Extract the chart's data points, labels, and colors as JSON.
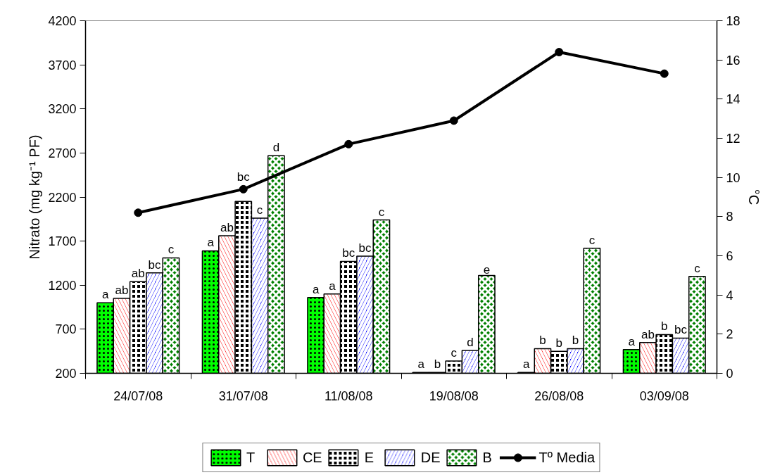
{
  "chart_data": {
    "type": "bar",
    "categories": [
      "24/07/08",
      "31/07/08",
      "11/08/08",
      "19/08/08",
      "26/08/08",
      "03/09/08"
    ],
    "ylabel": "Nitrato (mg kg⁻¹ PF)",
    "y2label": "°C",
    "ylim": [
      200,
      4200
    ],
    "yticks": [
      200,
      700,
      1200,
      1700,
      2200,
      2700,
      3200,
      3700,
      4200
    ],
    "y2lim": [
      0,
      18
    ],
    "y2ticks": [
      0,
      2,
      4,
      6,
      8,
      10,
      12,
      14,
      16,
      18
    ],
    "grid": false,
    "legend": "bottom",
    "marker": "circle",
    "series": [
      {
        "name": "T",
        "color": "#00ff00",
        "values": [
          1000,
          1590,
          1060,
          210,
          210,
          470
        ],
        "value_labels": [
          "a",
          "a",
          "a",
          "a",
          "a",
          "a"
        ]
      },
      {
        "name": "CE",
        "color": "#ff0000",
        "values": [
          1050,
          1760,
          1100,
          210,
          480,
          550
        ],
        "value_labels": [
          "ab",
          "ab",
          "a",
          "b",
          "b",
          "ab"
        ]
      },
      {
        "name": "E",
        "color": "#000000",
        "values": [
          1240,
          2150,
          1470,
          340,
          450,
          640
        ],
        "value_labels": [
          "ab",
          "bc",
          "bc",
          "c",
          "b",
          "b"
        ]
      },
      {
        "name": "DE",
        "color": "#0000ff",
        "values": [
          1340,
          1960,
          1530,
          460,
          480,
          600
        ],
        "value_labels": [
          "bc",
          "c",
          "bc",
          "d",
          "b",
          "bc"
        ]
      },
      {
        "name": "B",
        "color": "#008000",
        "values": [
          1510,
          2670,
          1940,
          1310,
          1620,
          1300
        ],
        "value_labels": [
          "c",
          "d",
          "c",
          "e",
          "c",
          "c"
        ]
      },
      {
        "name": "Tº Media",
        "type": "line",
        "axis": "y2",
        "color": "#000000",
        "values": [
          8.2,
          9.4,
          11.7,
          12.9,
          16.4,
          15.3
        ]
      }
    ]
  }
}
